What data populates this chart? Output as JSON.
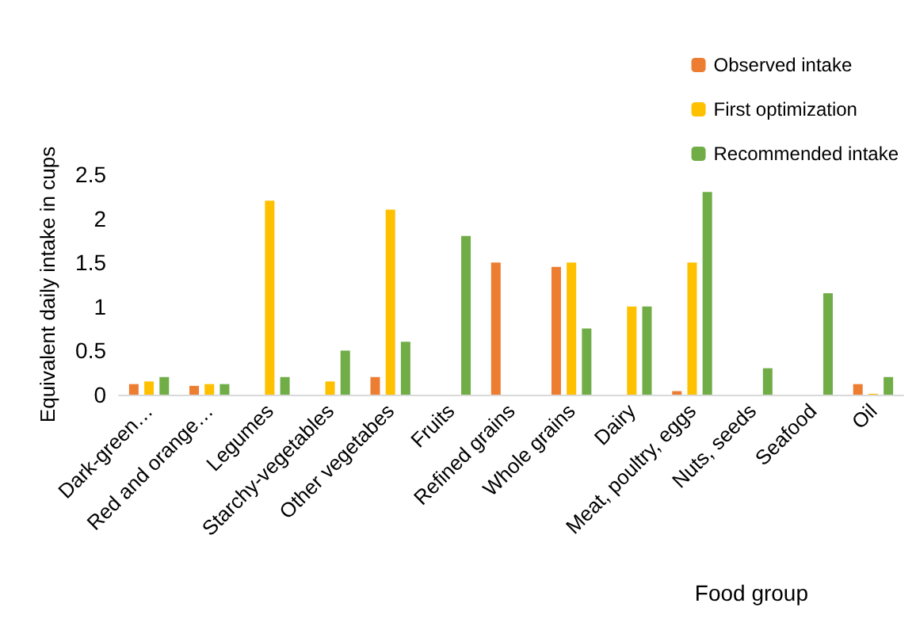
{
  "chart_data": {
    "type": "bar",
    "xlabel": "Food group",
    "ylabel": "Equivalent daily intake in cups",
    "categories": [
      "Dark-green…",
      "Red and orange…",
      "Legumes",
      "Starchy-vegetables",
      "Other vegetabes",
      "Fruits",
      "Refined grains",
      "Whole grains",
      "Dairy",
      "Meat, poultry, eggs",
      "Nuts, seeds",
      "Seafood",
      "Oil"
    ],
    "series": [
      {
        "name": "Observed intake",
        "color": "#ed7d31",
        "values": [
          0.12,
          0.1,
          0,
          0,
          0.2,
          0,
          1.5,
          1.45,
          0,
          0.04,
          0,
          0,
          0.12
        ]
      },
      {
        "name": "First optimization",
        "color": "#ffc000",
        "values": [
          0.15,
          0.12,
          2.2,
          0.15,
          2.1,
          0,
          0,
          1.5,
          1.0,
          1.5,
          0,
          0,
          0.01
        ]
      },
      {
        "name": "Recommended intake",
        "color": "#70ad47",
        "values": [
          0.2,
          0.12,
          0.2,
          0.5,
          0.6,
          1.8,
          0,
          0.75,
          1.0,
          2.3,
          0.3,
          1.15,
          0.2
        ]
      }
    ],
    "ylim": [
      0,
      2.5
    ],
    "yticks": [
      0,
      0.5,
      1,
      1.5,
      2,
      2.5
    ],
    "grid": false,
    "legend": "top right"
  }
}
